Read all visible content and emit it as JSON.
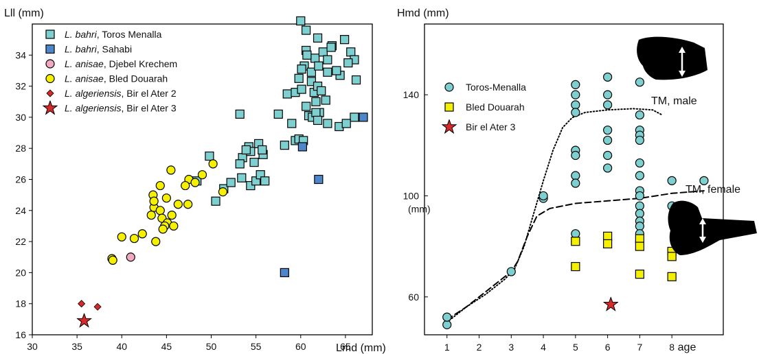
{
  "chart_data": [
    {
      "type": "scatter",
      "ylabel": "Lll (mm)",
      "xlabel": "Lmd (mm)",
      "xlim": [
        30,
        68
      ],
      "ylim": [
        16,
        36
      ],
      "xticks": [
        "30",
        "35",
        "40",
        "45",
        "50",
        "55",
        "60",
        "65"
      ],
      "yticks": [
        "16",
        "18",
        "20",
        "22",
        "24",
        "26",
        "28",
        "30",
        "32",
        "34"
      ],
      "legend_position": "top-left",
      "series": [
        {
          "name": [
            "L. bahri",
            ", Toros Menalla"
          ],
          "marker": "square",
          "color": "#7ecfcf",
          "points": [
            [
              54.8,
              27.1
            ],
            [
              53.5,
              27.4
            ],
            [
              54.2,
              28.1
            ],
            [
              55.8,
              27.6
            ],
            [
              55.3,
              28.3
            ],
            [
              53.2,
              27.0
            ],
            [
              53.4,
              26.1
            ],
            [
              54.4,
              25.6
            ],
            [
              55.0,
              25.9
            ],
            [
              55.5,
              26.3
            ],
            [
              56.0,
              25.9
            ],
            [
              58.2,
              28.2
            ],
            [
              59.4,
              28.5
            ],
            [
              59.8,
              28.6
            ],
            [
              60.3,
              28.5
            ],
            [
              59.0,
              29.6
            ],
            [
              60.9,
              30.1
            ],
            [
              61.3,
              30.0
            ],
            [
              62.1,
              30.3
            ],
            [
              61.7,
              31.0
            ],
            [
              62.8,
              31.1
            ],
            [
              61.5,
              31.6
            ],
            [
              61.2,
              32.3
            ],
            [
              59.8,
              32.5
            ],
            [
              60.4,
              33.3
            ],
            [
              61.6,
              33.8
            ],
            [
              62.5,
              34.2
            ],
            [
              63.5,
              34.6
            ],
            [
              61.9,
              35.1
            ],
            [
              60.6,
              35.6
            ],
            [
              60.0,
              36.2
            ],
            [
              53.2,
              30.2
            ],
            [
              57.5,
              30.2
            ],
            [
              58.5,
              31.5
            ],
            [
              59.4,
              31.6
            ],
            [
              60.1,
              31.8
            ],
            [
              61.2,
              32.9
            ],
            [
              63.0,
              33.7
            ],
            [
              63.4,
              34.5
            ],
            [
              64.9,
              35.0
            ],
            [
              65.6,
              34.2
            ],
            [
              66.0,
              33.7
            ],
            [
              66.2,
              32.4
            ],
            [
              65.3,
              33.5
            ],
            [
              64.4,
              32.7
            ],
            [
              64.0,
              33.0
            ],
            [
              63.0,
              32.9
            ],
            [
              62.0,
              33.3
            ],
            [
              60.1,
              33.1
            ],
            [
              60.6,
              34.3
            ],
            [
              60.7,
              34.0
            ],
            [
              61.9,
              32.0
            ],
            [
              62.3,
              31.7
            ],
            [
              60.6,
              30.7
            ],
            [
              61.7,
              30.3
            ],
            [
              61.9,
              29.8
            ],
            [
              63.0,
              29.6
            ],
            [
              64.3,
              29.4
            ],
            [
              66.0,
              30.0
            ],
            [
              65.1,
              29.6
            ],
            [
              48.4,
              25.9
            ],
            [
              49.8,
              27.5
            ],
            [
              50.5,
              24.6
            ],
            [
              51.4,
              25.4
            ],
            [
              52.2,
              25.8
            ],
            [
              55.7,
              27.9
            ],
            [
              54.4,
              27.8
            ],
            [
              53.9,
              27.9
            ]
          ]
        },
        {
          "name": [
            "L. bahri",
            ", Sahabi"
          ],
          "marker": "square",
          "color": "#4d87c9",
          "points": [
            [
              67.0,
              30.0
            ],
            [
              60.2,
              28.1
            ],
            [
              62.0,
              26.0
            ],
            [
              58.2,
              20.0
            ]
          ]
        },
        {
          "name": [
            "L. anisae",
            ", Djebel Krechem"
          ],
          "marker": "circle",
          "color": "#f3a8c2",
          "points": [
            [
              41.0,
              21.0
            ]
          ]
        },
        {
          "name": [
            "L. anisae",
            ", Bled Douarah"
          ],
          "marker": "circle",
          "color": "#f5f000",
          "points": [
            [
              45.5,
              26.6
            ],
            [
              47.5,
              26.0
            ],
            [
              48.2,
              25.8
            ],
            [
              47.1,
              25.6
            ],
            [
              44.3,
              25.6
            ],
            [
              43.5,
              25.0
            ],
            [
              45.0,
              24.8
            ],
            [
              43.6,
              24.2
            ],
            [
              44.3,
              24.0
            ],
            [
              45.6,
              23.7
            ],
            [
              46.3,
              24.4
            ],
            [
              47.4,
              24.4
            ],
            [
              43.3,
              23.7
            ],
            [
              44.5,
              23.5
            ],
            [
              45.1,
              23.2
            ],
            [
              45.8,
              23.0
            ],
            [
              44.8,
              23.0
            ],
            [
              44.6,
              22.8
            ],
            [
              42.3,
              22.5
            ],
            [
              41.4,
              22.2
            ],
            [
              40.0,
              22.3
            ],
            [
              43.8,
              22.0
            ],
            [
              38.9,
              20.9
            ],
            [
              39.0,
              20.8
            ],
            [
              43.6,
              24.6
            ],
            [
              51.3,
              25.2
            ],
            [
              49.0,
              26.3
            ],
            [
              50.2,
              27.0
            ]
          ]
        },
        {
          "name": [
            "L. algeriensis",
            ", Bir el Ater 2"
          ],
          "marker": "diamond",
          "color": "#d62a2a",
          "points": [
            [
              35.5,
              18.0
            ],
            [
              37.3,
              17.8
            ]
          ]
        },
        {
          "name": [
            "L. algeriensis",
            ", Bir el Ater 3"
          ],
          "marker": "star",
          "color": "#d62a2a",
          "points": [
            [
              35.8,
              16.9
            ]
          ]
        }
      ]
    },
    {
      "type": "scatter",
      "ylabel": "Hmd  (mm)",
      "xlabel": "age",
      "xlim": [
        0.3,
        9.6
      ],
      "ylim": [
        45,
        168
      ],
      "xticks": [
        "1",
        "2",
        "3",
        "4",
        "5",
        "6",
        "7",
        "8"
      ],
      "yticks": [
        "60",
        "100",
        "140"
      ],
      "legend_position": "top-left",
      "series": [
        {
          "name": "Toros-Menalla",
          "marker": "circle",
          "color": "#7ecfcf",
          "points": [
            [
              1,
              49
            ],
            [
              1,
              52
            ],
            [
              3,
              70
            ],
            [
              4,
              99
            ],
            [
              4,
              100
            ],
            [
              5,
              144
            ],
            [
              5,
              140
            ],
            [
              5,
              136
            ],
            [
              5,
              133
            ],
            [
              5,
              118
            ],
            [
              5,
              116
            ],
            [
              5,
              108
            ],
            [
              5,
              105
            ],
            [
              5,
              85
            ],
            [
              6,
              147
            ],
            [
              6,
              140
            ],
            [
              6,
              136
            ],
            [
              6,
              126
            ],
            [
              6,
              122
            ],
            [
              6,
              116
            ],
            [
              6,
              111
            ],
            [
              7,
              145
            ],
            [
              7,
              132
            ],
            [
              7,
              126
            ],
            [
              7,
              124
            ],
            [
              7,
              122
            ],
            [
              7,
              113
            ],
            [
              7,
              108
            ],
            [
              7,
              102
            ],
            [
              7,
              100
            ],
            [
              7,
              96
            ],
            [
              7,
              93
            ],
            [
              7,
              90
            ],
            [
              7,
              88
            ],
            [
              7,
              85
            ],
            [
              7,
              82
            ],
            [
              8,
              106
            ],
            [
              8,
              96
            ],
            [
              9,
              106
            ]
          ]
        },
        {
          "name": "Bled Douarah",
          "marker": "square",
          "color": "#f5f000",
          "points": [
            [
              5,
              82
            ],
            [
              5,
              72
            ],
            [
              6,
              84
            ],
            [
              6,
              81
            ],
            [
              7,
              83
            ],
            [
              7,
              80
            ],
            [
              7,
              69
            ],
            [
              8,
              78
            ],
            [
              8,
              76
            ],
            [
              8,
              68
            ]
          ]
        },
        {
          "name": "Bir el Ater 3",
          "marker": "star",
          "color": "#d62a2a",
          "points": [
            [
              6.1,
              57
            ]
          ]
        }
      ],
      "curves": [
        {
          "name": "TM, male",
          "style": "dotted",
          "points": [
            [
              1,
              50
            ],
            [
              1.6,
              56
            ],
            [
              2.2,
              61
            ],
            [
              2.8,
              67
            ],
            [
              3.1,
              71
            ],
            [
              3.4,
              80
            ],
            [
              3.7,
              93
            ],
            [
              4.0,
              106
            ],
            [
              4.3,
              118
            ],
            [
              4.6,
              127
            ],
            [
              4.9,
              131
            ],
            [
              5.3,
              133
            ],
            [
              6.0,
              134
            ],
            [
              6.8,
              134.5
            ],
            [
              7.4,
              134
            ],
            [
              7.7,
              132
            ]
          ]
        },
        {
          "name": "TM, female",
          "style": "dashed",
          "points": [
            [
              1,
              51
            ],
            [
              1.6,
              56
            ],
            [
              2.2,
              62
            ],
            [
              2.8,
              68
            ],
            [
              3.0,
              70
            ],
            [
              3.2,
              74
            ],
            [
              3.5,
              84
            ],
            [
              3.8,
              92
            ],
            [
              4.2,
              95
            ],
            [
              5.0,
              97
            ],
            [
              6.0,
              98
            ],
            [
              7.0,
              99
            ],
            [
              8.0,
              101
            ],
            [
              9.0,
              102
            ]
          ]
        }
      ],
      "annotations": [
        {
          "text": "TM, male",
          "pos": [
            7.7,
            132
          ]
        },
        {
          "text": "TM, female",
          "pos": [
            7.5,
            97
          ]
        },
        {
          "text": "(mm)",
          "pos": [
            0,
            0
          ]
        }
      ]
    }
  ]
}
